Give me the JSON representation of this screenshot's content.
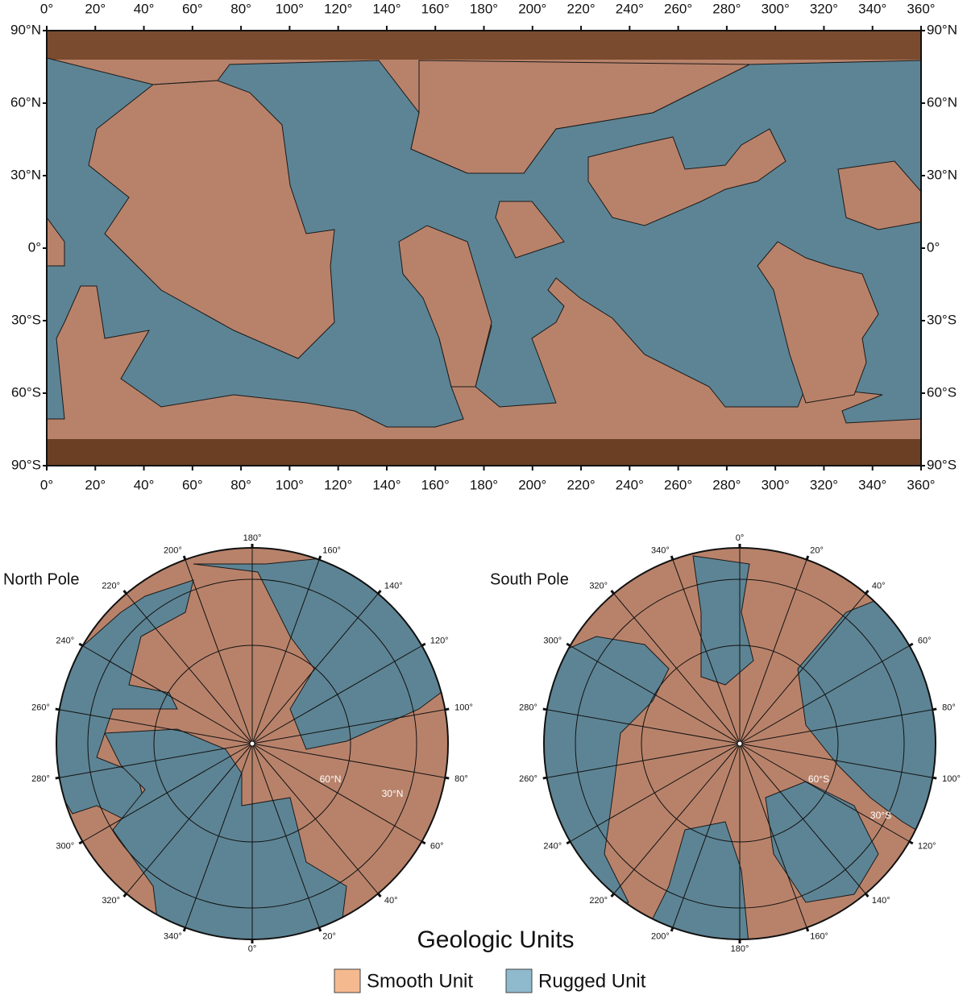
{
  "global_map": {
    "lon_labels": [
      "0°",
      "20°",
      "40°",
      "60°",
      "80°",
      "100°",
      "120°",
      "140°",
      "160°",
      "180°",
      "200°",
      "220°",
      "240°",
      "260°",
      "280°",
      "300°",
      "320°",
      "340°",
      "360°"
    ],
    "lat_labels": [
      "90°N",
      "60°N",
      "30°N",
      "0°",
      "30°S",
      "60°S",
      "90°S"
    ]
  },
  "north_pole": {
    "title": "North Pole",
    "lon_labels": [
      "180°",
      "160°",
      "140°",
      "120°",
      "100°",
      "80°",
      "60°",
      "40°",
      "20°",
      "0°",
      "340°",
      "320°",
      "300°",
      "280°",
      "260°",
      "240°",
      "220°",
      "200°"
    ],
    "ring_labels": [
      "60°N",
      "30°N"
    ]
  },
  "south_pole": {
    "title": "South Pole",
    "lon_labels": [
      "0°",
      "20°",
      "40°",
      "60°",
      "80°",
      "100°",
      "120°",
      "140°",
      "160°",
      "180°",
      "200°",
      "220°",
      "240°",
      "260°",
      "280°",
      "300°",
      "320°",
      "340°"
    ],
    "ring_labels": [
      "60°S",
      "30°S"
    ]
  },
  "legend": {
    "title": "Geologic Units",
    "items": [
      "Smooth Unit",
      "Rugged Unit"
    ]
  }
}
